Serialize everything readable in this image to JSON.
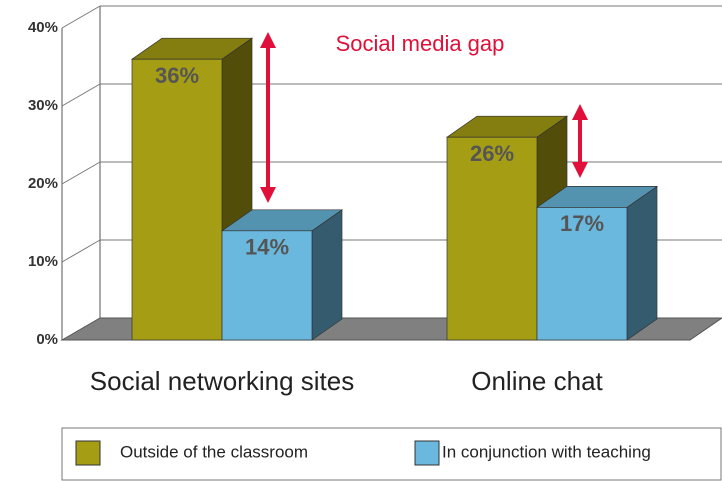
{
  "chart_data": {
    "type": "bar3d",
    "annotation": "Social media gap",
    "categories": [
      "Social networking sites",
      "Online chat"
    ],
    "series": [
      {
        "name": "Outside of the classroom",
        "color": "#a59d13",
        "values": [
          36,
          26
        ],
        "value_labels": [
          "36%",
          "26%"
        ]
      },
      {
        "name": "In conjunction with teaching",
        "color": "#6ab8dd",
        "values": [
          14,
          17
        ],
        "value_labels": [
          "14%",
          "17%"
        ]
      }
    ],
    "ylim": [
      0,
      40
    ],
    "yticks": [
      {
        "value": 0,
        "label": "0%"
      },
      {
        "value": 10,
        "label": "10%"
      },
      {
        "value": 20,
        "label": "20%"
      },
      {
        "value": 30,
        "label": "30%"
      },
      {
        "value": 40,
        "label": "40%"
      }
    ],
    "grid": true
  }
}
